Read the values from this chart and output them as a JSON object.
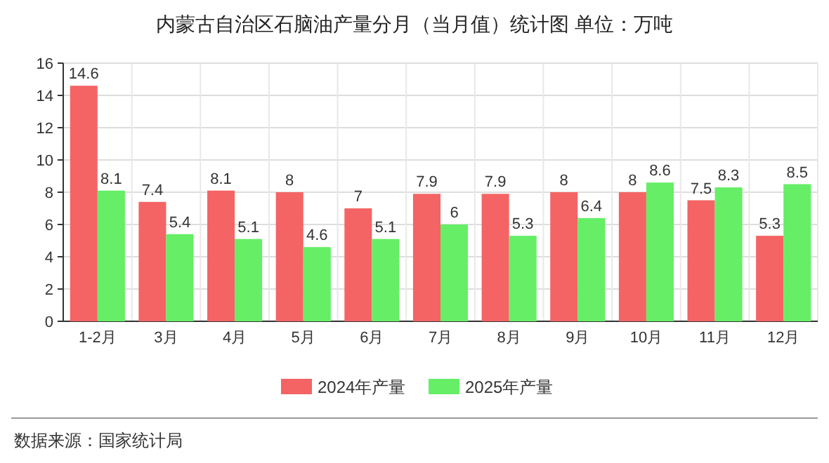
{
  "chart_data": {
    "type": "bar",
    "title": "内蒙古自治区石脑油产量分月（当月值）统计图  单位：万吨",
    "categories": [
      "1-2月",
      "3月",
      "4月",
      "5月",
      "6月",
      "7月",
      "8月",
      "9月",
      "10月",
      "11月",
      "12月"
    ],
    "series": [
      {
        "name": "2024年产量",
        "color": "#f46464",
        "values": [
          14.6,
          7.4,
          8.1,
          8,
          7,
          7.9,
          7.9,
          8,
          8,
          7.5,
          5.3
        ]
      },
      {
        "name": "2025年产量",
        "color": "#66ee66",
        "values": [
          8.1,
          5.4,
          5.1,
          4.6,
          5.1,
          6,
          5.3,
          6.4,
          8.6,
          8.3,
          8.5
        ]
      }
    ],
    "ylim": [
      0,
      16
    ],
    "yticks": [
      0,
      2,
      4,
      6,
      8,
      10,
      12,
      14,
      16
    ],
    "grid": true,
    "legend": "bottom",
    "data_labels": true,
    "annotations": [
      "数据来源：国家统计局"
    ]
  }
}
